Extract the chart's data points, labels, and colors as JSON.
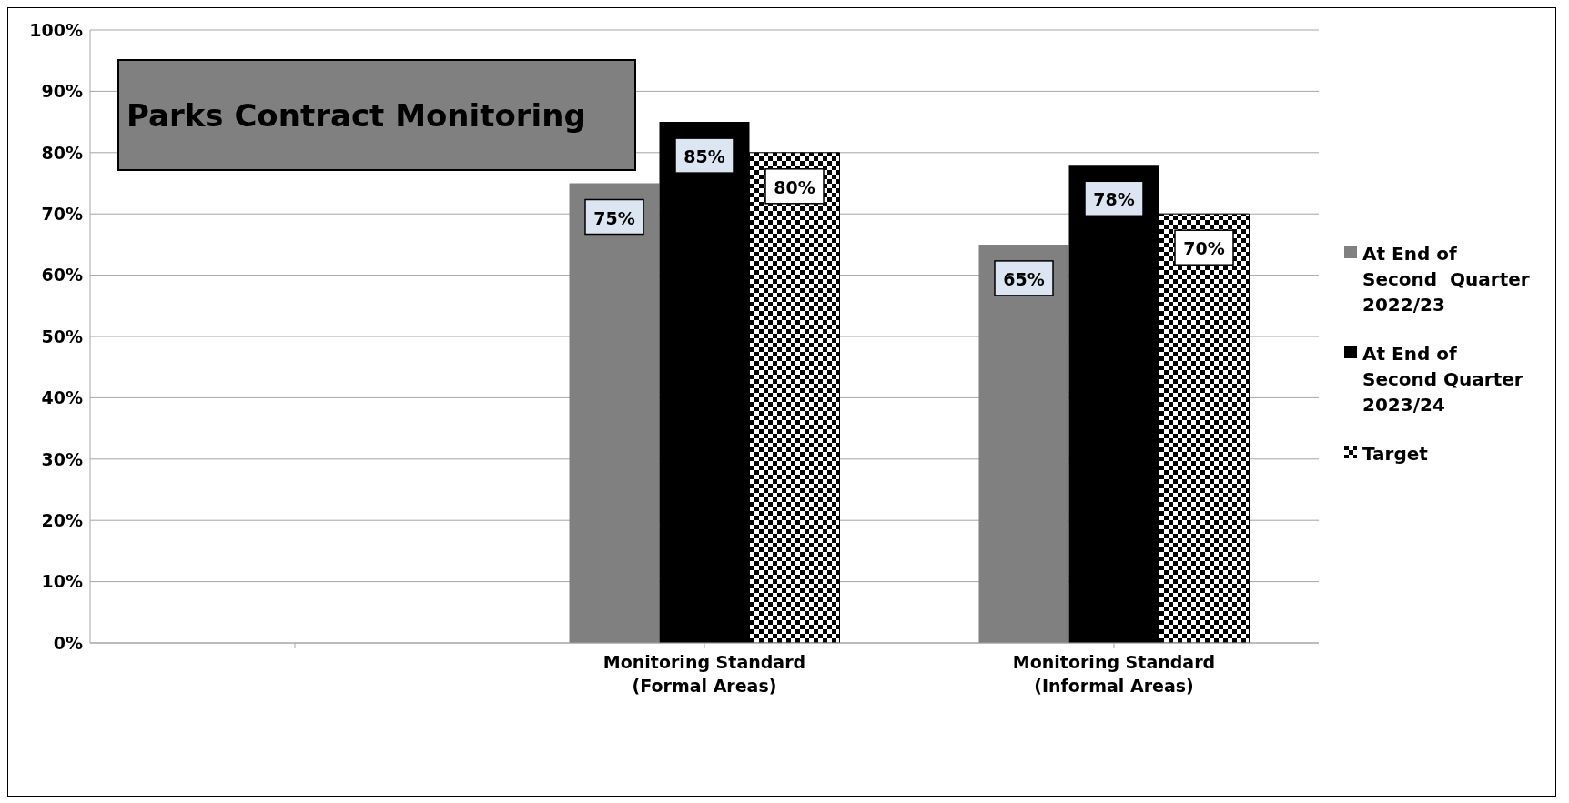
{
  "chart_data": {
    "type": "bar",
    "title": "Parks Contract Monitoring",
    "categories": [
      null,
      "Monitoring Standard\n(Formal Areas)",
      "Monitoring Standard\n(Informal Areas)"
    ],
    "series": [
      {
        "name": "At End of\nSecond  Quarter\n2022/23",
        "color": "#808080",
        "values": [
          null,
          75,
          65
        ],
        "value_labels": [
          null,
          "75%",
          "65%"
        ]
      },
      {
        "name": "At End of\nSecond Quarter\n2023/24",
        "color": "#000000",
        "values": [
          null,
          85,
          78
        ],
        "value_labels": [
          null,
          "85%",
          "78%"
        ]
      },
      {
        "name": "Target",
        "color": "#000000",
        "values": [
          null,
          80,
          70
        ],
        "value_labels": [
          null,
          "80%",
          "70%"
        ]
      }
    ],
    "ylim": [
      0,
      100
    ],
    "yticks": [
      {
        "value": 0,
        "label": "0%"
      },
      {
        "value": 10,
        "label": "10%"
      },
      {
        "value": 20,
        "label": "20%"
      },
      {
        "value": 30,
        "label": "30%"
      },
      {
        "value": 40,
        "label": "40%"
      },
      {
        "value": 50,
        "label": "50%"
      },
      {
        "value": 60,
        "label": "60%"
      },
      {
        "value": 70,
        "label": "70%"
      },
      {
        "value": 80,
        "label": "80%"
      },
      {
        "value": 90,
        "label": "90%"
      },
      {
        "value": 100,
        "label": "100%"
      }
    ],
    "grid": "y",
    "legend": "right"
  }
}
